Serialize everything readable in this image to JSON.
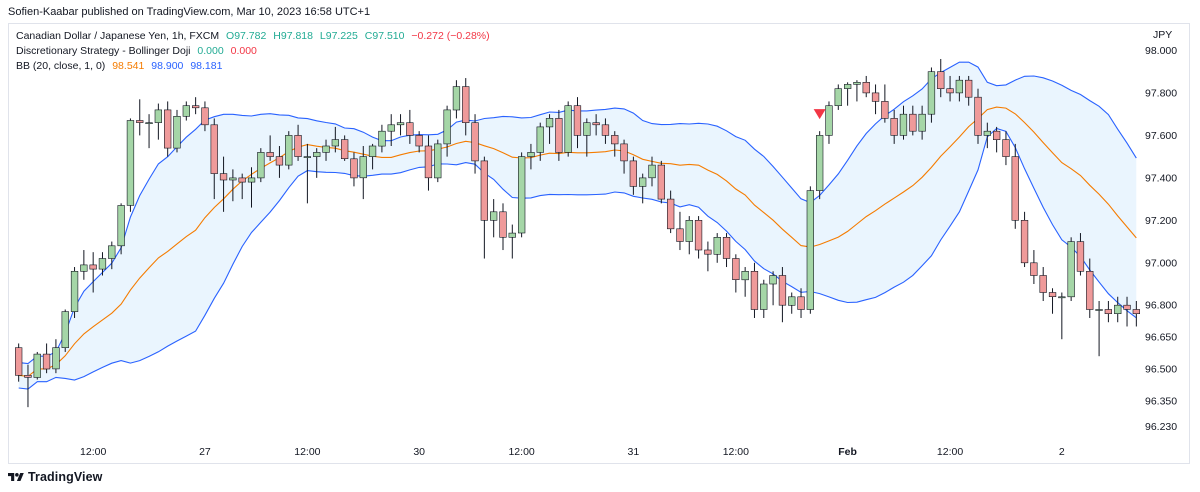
{
  "header": {
    "published": "Sofien-Kaabar published on TradingView.com, Mar 10, 2023 16:58 UTC+1"
  },
  "legend": {
    "line1": {
      "symbol": "Canadian Dollar / Japanese Yen, 1h, FXCM",
      "open": "O97.782",
      "high": "H97.818",
      "low": "L97.225",
      "close": "C97.510",
      "change": "−0.272 (−0.28%)"
    },
    "line2": {
      "name": "Discretionary Strategy - Bollinger Doji",
      "v1": "0.000",
      "v2": "0.000"
    },
    "line3": {
      "name": "BB (20, close, 1, 0)",
      "basis": "98.541",
      "upper": "98.900",
      "lower": "98.181"
    }
  },
  "currency": "JPY",
  "footer": {
    "brand": "TradingView"
  },
  "colors": {
    "up": "#22ab94",
    "up_body": "#a5d6a7",
    "down": "#f23645",
    "down_body": "#ef9a9a",
    "basis": "#f57c00",
    "band": "#2962ff",
    "fill": "#e3f2fd",
    "axis_text": "#131722"
  },
  "chart_data": {
    "type": "candlestick",
    "symbol": "CADJPY",
    "timeframe": "1h",
    "ylim": [
      96.17,
      98.12
    ],
    "y_ticks": [
      "98.000",
      "97.800",
      "97.600",
      "97.400",
      "97.200",
      "97.000",
      "96.800",
      "96.650",
      "96.500",
      "96.350",
      "96.230"
    ],
    "x_ticks": [
      {
        "label": "12:00",
        "bar": 8
      },
      {
        "label": "27",
        "bar": 20
      },
      {
        "label": "12:00",
        "bar": 31
      },
      {
        "label": "30",
        "bar": 43
      },
      {
        "label": "12:00",
        "bar": 54
      },
      {
        "label": "31",
        "bar": 66
      },
      {
        "label": "12:00",
        "bar": 77
      },
      {
        "label": "Feb",
        "bar": 89
      },
      {
        "label": "12:00",
        "bar": 100
      },
      {
        "label": "2",
        "bar": 112
      }
    ],
    "markers": [
      {
        "type": "sell-triangle",
        "bar": 86,
        "color": "#f23645"
      }
    ],
    "candles": [
      [
        96.6,
        96.62,
        96.44,
        96.47
      ],
      [
        96.47,
        96.52,
        96.32,
        96.46
      ],
      [
        96.46,
        96.58,
        96.45,
        96.57
      ],
      [
        96.57,
        96.62,
        96.48,
        96.5
      ],
      [
        96.5,
        96.64,
        96.48,
        96.6
      ],
      [
        96.6,
        96.78,
        96.58,
        96.77
      ],
      [
        96.77,
        96.98,
        96.74,
        96.96
      ],
      [
        96.96,
        97.06,
        96.92,
        96.99
      ],
      [
        96.99,
        97.05,
        96.86,
        96.97
      ],
      [
        96.97,
        97.05,
        96.94,
        97.02
      ],
      [
        97.02,
        97.1,
        96.97,
        97.08
      ],
      [
        97.08,
        97.28,
        97.04,
        97.27
      ],
      [
        97.27,
        97.68,
        97.24,
        97.67
      ],
      [
        97.67,
        97.77,
        97.6,
        97.66
      ],
      [
        97.66,
        97.7,
        97.54,
        97.66
      ],
      [
        97.66,
        97.75,
        97.58,
        97.72
      ],
      [
        97.72,
        97.76,
        97.5,
        97.54
      ],
      [
        97.54,
        97.72,
        97.52,
        97.69
      ],
      [
        97.69,
        97.76,
        97.67,
        97.74
      ],
      [
        97.74,
        97.78,
        97.7,
        97.73
      ],
      [
        97.73,
        97.76,
        97.62,
        97.65
      ],
      [
        97.65,
        97.68,
        97.3,
        97.42
      ],
      [
        97.42,
        97.5,
        97.24,
        97.39
      ],
      [
        97.39,
        97.44,
        97.29,
        97.4
      ],
      [
        97.4,
        97.42,
        97.3,
        97.38
      ],
      [
        97.38,
        97.45,
        97.26,
        97.4
      ],
      [
        97.4,
        97.54,
        97.38,
        97.52
      ],
      [
        97.52,
        97.6,
        97.48,
        97.5
      ],
      [
        97.5,
        97.55,
        97.4,
        97.46
      ],
      [
        97.46,
        97.62,
        97.44,
        97.6
      ],
      [
        97.6,
        97.65,
        97.48,
        97.5
      ],
      [
        97.5,
        97.56,
        97.28,
        97.5
      ],
      [
        97.5,
        97.54,
        97.4,
        97.52
      ],
      [
        97.52,
        97.58,
        97.48,
        97.55
      ],
      [
        97.55,
        97.64,
        97.52,
        97.58
      ],
      [
        97.58,
        97.6,
        97.48,
        97.49
      ],
      [
        97.49,
        97.52,
        97.36,
        97.4
      ],
      [
        97.4,
        97.55,
        97.3,
        97.5
      ],
      [
        97.5,
        97.56,
        97.44,
        97.55
      ],
      [
        97.55,
        97.65,
        97.52,
        97.62
      ],
      [
        97.62,
        97.7,
        97.55,
        97.65
      ],
      [
        97.65,
        97.7,
        97.6,
        97.66
      ],
      [
        97.66,
        97.72,
        97.56,
        97.6
      ],
      [
        97.6,
        97.62,
        97.52,
        97.55
      ],
      [
        97.55,
        97.6,
        97.34,
        97.4
      ],
      [
        97.4,
        97.58,
        97.38,
        97.56
      ],
      [
        97.56,
        97.74,
        97.5,
        97.72
      ],
      [
        97.72,
        97.86,
        97.68,
        97.83
      ],
      [
        97.83,
        97.87,
        97.6,
        97.66
      ],
      [
        97.66,
        97.7,
        97.42,
        97.48
      ],
      [
        97.48,
        97.5,
        97.02,
        97.2
      ],
      [
        97.2,
        97.3,
        97.12,
        97.24
      ],
      [
        97.24,
        97.28,
        97.06,
        97.12
      ],
      [
        97.12,
        97.18,
        97.02,
        97.14
      ],
      [
        97.14,
        97.52,
        97.12,
        97.5
      ],
      [
        97.5,
        97.56,
        97.44,
        97.52
      ],
      [
        97.52,
        97.66,
        97.48,
        97.64
      ],
      [
        97.64,
        97.7,
        97.56,
        97.68
      ],
      [
        97.68,
        97.72,
        97.48,
        97.52
      ],
      [
        97.52,
        97.76,
        97.5,
        97.74
      ],
      [
        97.74,
        97.78,
        97.54,
        97.6
      ],
      [
        97.6,
        97.68,
        97.5,
        97.66
      ],
      [
        97.66,
        97.7,
        97.6,
        97.65
      ],
      [
        97.65,
        97.68,
        97.56,
        97.6
      ],
      [
        97.6,
        97.62,
        97.5,
        97.56
      ],
      [
        97.56,
        97.58,
        97.42,
        97.48
      ],
      [
        97.48,
        97.5,
        97.32,
        97.36
      ],
      [
        97.36,
        97.42,
        97.28,
        97.4
      ],
      [
        97.4,
        97.5,
        97.36,
        97.46
      ],
      [
        97.46,
        97.48,
        97.28,
        97.3
      ],
      [
        97.3,
        97.34,
        97.14,
        97.16
      ],
      [
        97.16,
        97.24,
        97.06,
        97.1
      ],
      [
        97.1,
        97.22,
        97.04,
        97.2
      ],
      [
        97.2,
        97.22,
        97.02,
        97.06
      ],
      [
        97.06,
        97.1,
        96.96,
        97.04
      ],
      [
        97.04,
        97.14,
        97.0,
        97.12
      ],
      [
        97.12,
        97.14,
        96.98,
        97.02
      ],
      [
        97.02,
        97.04,
        96.86,
        96.92
      ],
      [
        96.92,
        96.98,
        96.84,
        96.96
      ],
      [
        96.96,
        97.0,
        96.74,
        96.78
      ],
      [
        96.78,
        96.92,
        96.74,
        96.9
      ],
      [
        96.9,
        96.96,
        96.8,
        96.94
      ],
      [
        96.94,
        96.98,
        96.72,
        96.8
      ],
      [
        96.8,
        96.86,
        96.76,
        96.84
      ],
      [
        96.84,
        96.88,
        96.74,
        96.78
      ],
      [
        96.78,
        97.36,
        96.76,
        97.34
      ],
      [
        97.34,
        97.62,
        97.3,
        97.6
      ],
      [
        97.6,
        97.76,
        97.56,
        97.74
      ],
      [
        97.74,
        97.84,
        97.72,
        97.82
      ],
      [
        97.82,
        97.85,
        97.74,
        97.84
      ],
      [
        97.84,
        97.86,
        97.76,
        97.85
      ],
      [
        97.85,
        97.88,
        97.78,
        97.8
      ],
      [
        97.8,
        97.84,
        97.7,
        97.76
      ],
      [
        97.76,
        97.84,
        97.66,
        97.68
      ],
      [
        97.68,
        97.72,
        97.56,
        97.6
      ],
      [
        97.6,
        97.74,
        97.58,
        97.7
      ],
      [
        97.7,
        97.74,
        97.6,
        97.62
      ],
      [
        97.62,
        97.74,
        97.58,
        97.7
      ],
      [
        97.7,
        97.92,
        97.66,
        97.9
      ],
      [
        97.9,
        97.96,
        97.78,
        97.82
      ],
      [
        97.82,
        97.88,
        97.76,
        97.8
      ],
      [
        97.8,
        97.88,
        97.76,
        97.86
      ],
      [
        97.86,
        97.88,
        97.74,
        97.78
      ],
      [
        97.78,
        97.82,
        97.56,
        97.6
      ],
      [
        97.6,
        97.66,
        97.54,
        97.62
      ],
      [
        97.62,
        97.64,
        97.52,
        97.58
      ],
      [
        97.58,
        97.62,
        97.46,
        97.5
      ],
      [
        97.5,
        97.56,
        97.16,
        97.2
      ],
      [
        97.2,
        97.24,
        96.98,
        97.0
      ],
      [
        97.0,
        97.06,
        96.9,
        96.94
      ],
      [
        96.94,
        96.98,
        96.82,
        96.86
      ],
      [
        96.86,
        96.88,
        96.76,
        96.84
      ],
      [
        96.84,
        96.86,
        96.64,
        96.84
      ],
      [
        96.84,
        97.12,
        96.82,
        97.1
      ],
      [
        97.1,
        97.14,
        96.94,
        96.96
      ],
      [
        96.96,
        97.02,
        96.74,
        96.78
      ],
      [
        96.78,
        96.82,
        96.56,
        96.78
      ],
      [
        96.78,
        96.82,
        96.72,
        96.76
      ],
      [
        96.76,
        96.84,
        96.72,
        96.8
      ],
      [
        96.8,
        96.84,
        96.7,
        96.78
      ],
      [
        96.78,
        96.82,
        96.7,
        96.76
      ]
    ]
  }
}
